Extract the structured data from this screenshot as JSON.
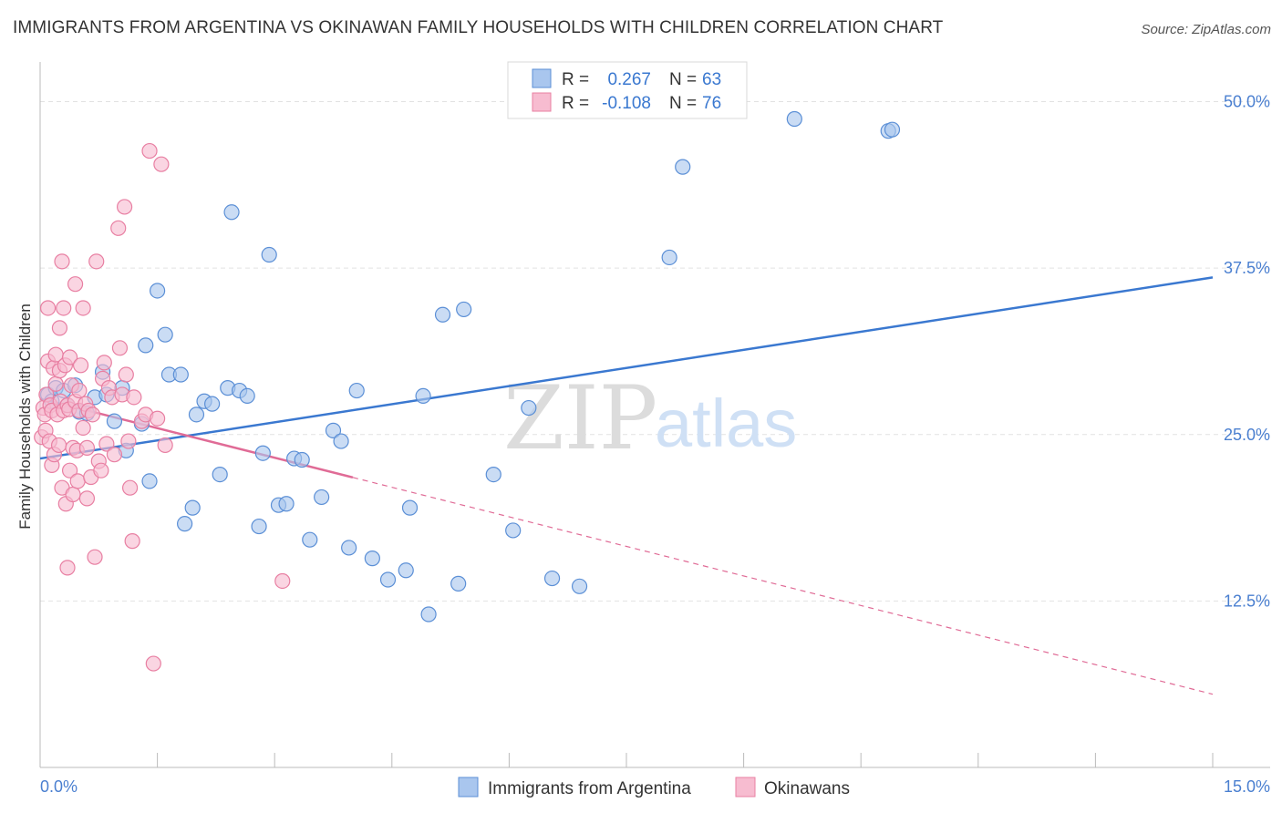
{
  "title": "IMMIGRANTS FROM ARGENTINA VS OKINAWAN FAMILY HOUSEHOLDS WITH CHILDREN CORRELATION CHART",
  "source": "Source: ZipAtlas.com",
  "watermark": {
    "zip": "ZIP",
    "atlas": "atlas"
  },
  "stats": [
    {
      "r_label": "R =",
      "r_value": "0.267",
      "n_label": "N =",
      "n_value": "63"
    },
    {
      "r_label": "R =",
      "r_value": "-0.108",
      "n_label": "N =",
      "n_value": "76"
    }
  ],
  "chart_data": {
    "type": "scatter",
    "title": "IMMIGRANTS FROM ARGENTINA VS OKINAWAN FAMILY HOUSEHOLDS WITH CHILDREN CORRELATION CHART",
    "xlabel": "",
    "ylabel": "Family Households with Children",
    "xlim": [
      0,
      15
    ],
    "ylim": [
      0,
      52.5
    ],
    "x_tick_labels": [
      "0.0%",
      "15.0%"
    ],
    "y_ticks": [
      12.5,
      25.0,
      37.5,
      50.0
    ],
    "y_tick_labels": [
      "12.5%",
      "25.0%",
      "37.5%",
      "50.0%"
    ],
    "grid": true,
    "legend_position": "bottom-center",
    "colors": {
      "blue_fill": "#a9c6ee",
      "blue_stroke": "#5b8fd6",
      "blue_line": "#3a78d0",
      "pink_fill": "#f7bcd0",
      "pink_stroke": "#e87fa2",
      "pink_line": "#e06b96",
      "grid": "#e2e2e2",
      "axis": "#bbbbbb"
    },
    "series": [
      {
        "name": "Immigrants from Argentina",
        "color": "#a9c6ee",
        "trend": {
          "x": [
            0.0,
            15.0
          ],
          "y": [
            23.2,
            36.8
          ]
        },
        "points": [
          {
            "x": 0.1,
            "y": 28.0
          },
          {
            "x": 0.15,
            "y": 27.5
          },
          {
            "x": 0.2,
            "y": 28.5
          },
          {
            "x": 0.3,
            "y": 28.3
          },
          {
            "x": 0.35,
            "y": 27.2
          },
          {
            "x": 0.45,
            "y": 28.7
          },
          {
            "x": 0.5,
            "y": 26.7
          },
          {
            "x": 0.6,
            "y": 26.6
          },
          {
            "x": 0.7,
            "y": 27.8
          },
          {
            "x": 0.8,
            "y": 29.7
          },
          {
            "x": 0.85,
            "y": 28.0
          },
          {
            "x": 0.95,
            "y": 26.0
          },
          {
            "x": 1.05,
            "y": 28.5
          },
          {
            "x": 1.1,
            "y": 23.8
          },
          {
            "x": 1.3,
            "y": 25.8
          },
          {
            "x": 1.35,
            "y": 31.7
          },
          {
            "x": 1.4,
            "y": 21.5
          },
          {
            "x": 1.5,
            "y": 35.8
          },
          {
            "x": 1.6,
            "y": 32.5
          },
          {
            "x": 1.65,
            "y": 29.5
          },
          {
            "x": 1.8,
            "y": 29.5
          },
          {
            "x": 1.85,
            "y": 18.3
          },
          {
            "x": 1.95,
            "y": 19.5
          },
          {
            "x": 2.0,
            "y": 26.5
          },
          {
            "x": 2.1,
            "y": 27.5
          },
          {
            "x": 2.2,
            "y": 27.3
          },
          {
            "x": 2.3,
            "y": 22.0
          },
          {
            "x": 2.4,
            "y": 28.5
          },
          {
            "x": 2.45,
            "y": 41.7
          },
          {
            "x": 2.55,
            "y": 28.3
          },
          {
            "x": 2.65,
            "y": 27.9
          },
          {
            "x": 2.8,
            "y": 18.1
          },
          {
            "x": 2.85,
            "y": 23.6
          },
          {
            "x": 2.93,
            "y": 38.5
          },
          {
            "x": 3.05,
            "y": 19.7
          },
          {
            "x": 3.15,
            "y": 19.8
          },
          {
            "x": 3.25,
            "y": 23.2
          },
          {
            "x": 3.35,
            "y": 23.1
          },
          {
            "x": 3.45,
            "y": 17.1
          },
          {
            "x": 3.6,
            "y": 20.3
          },
          {
            "x": 3.75,
            "y": 25.3
          },
          {
            "x": 3.85,
            "y": 24.5
          },
          {
            "x": 3.95,
            "y": 16.5
          },
          {
            "x": 4.05,
            "y": 28.3
          },
          {
            "x": 4.25,
            "y": 15.7
          },
          {
            "x": 4.45,
            "y": 14.1
          },
          {
            "x": 4.68,
            "y": 14.8
          },
          {
            "x": 4.73,
            "y": 19.5
          },
          {
            "x": 4.9,
            "y": 27.9
          },
          {
            "x": 4.97,
            "y": 11.5
          },
          {
            "x": 5.15,
            "y": 34.0
          },
          {
            "x": 5.35,
            "y": 13.8
          },
          {
            "x": 5.42,
            "y": 34.4
          },
          {
            "x": 5.8,
            "y": 22.0
          },
          {
            "x": 6.05,
            "y": 17.8
          },
          {
            "x": 6.25,
            "y": 27.0
          },
          {
            "x": 6.55,
            "y": 14.2
          },
          {
            "x": 6.9,
            "y": 13.6
          },
          {
            "x": 8.05,
            "y": 38.3
          },
          {
            "x": 8.22,
            "y": 45.1
          },
          {
            "x": 9.65,
            "y": 48.7
          },
          {
            "x": 10.85,
            "y": 47.8
          },
          {
            "x": 10.9,
            "y": 47.9
          }
        ]
      },
      {
        "name": "Okinawans",
        "color": "#f7bcd0",
        "trend": {
          "x": [
            0.0,
            15.0
          ],
          "y": [
            27.7,
            5.5
          ]
        },
        "trend_solid_until_x": 4.0,
        "points": [
          {
            "x": 0.02,
            "y": 24.8
          },
          {
            "x": 0.04,
            "y": 27.0
          },
          {
            "x": 0.06,
            "y": 26.5
          },
          {
            "x": 0.07,
            "y": 25.3
          },
          {
            "x": 0.08,
            "y": 28.0
          },
          {
            "x": 0.1,
            "y": 30.5
          },
          {
            "x": 0.1,
            "y": 34.5
          },
          {
            "x": 0.12,
            "y": 24.5
          },
          {
            "x": 0.13,
            "y": 27.2
          },
          {
            "x": 0.15,
            "y": 22.7
          },
          {
            "x": 0.15,
            "y": 26.8
          },
          {
            "x": 0.17,
            "y": 30.0
          },
          {
            "x": 0.18,
            "y": 23.5
          },
          {
            "x": 0.2,
            "y": 28.8
          },
          {
            "x": 0.2,
            "y": 31.0
          },
          {
            "x": 0.22,
            "y": 26.5
          },
          {
            "x": 0.24,
            "y": 24.2
          },
          {
            "x": 0.25,
            "y": 29.8
          },
          {
            "x": 0.25,
            "y": 33.0
          },
          {
            "x": 0.26,
            "y": 27.5
          },
          {
            "x": 0.28,
            "y": 38.0
          },
          {
            "x": 0.28,
            "y": 21.0
          },
          {
            "x": 0.3,
            "y": 26.8
          },
          {
            "x": 0.3,
            "y": 34.5
          },
          {
            "x": 0.32,
            "y": 30.2
          },
          {
            "x": 0.33,
            "y": 19.8
          },
          {
            "x": 0.35,
            "y": 27.2
          },
          {
            "x": 0.35,
            "y": 15.0
          },
          {
            "x": 0.37,
            "y": 26.9
          },
          {
            "x": 0.38,
            "y": 22.3
          },
          {
            "x": 0.38,
            "y": 30.8
          },
          {
            "x": 0.4,
            "y": 28.7
          },
          {
            "x": 0.42,
            "y": 24.0
          },
          {
            "x": 0.42,
            "y": 20.5
          },
          {
            "x": 0.45,
            "y": 36.3
          },
          {
            "x": 0.45,
            "y": 27.5
          },
          {
            "x": 0.47,
            "y": 23.8
          },
          {
            "x": 0.48,
            "y": 21.5
          },
          {
            "x": 0.5,
            "y": 26.8
          },
          {
            "x": 0.5,
            "y": 28.3
          },
          {
            "x": 0.52,
            "y": 30.2
          },
          {
            "x": 0.55,
            "y": 25.5
          },
          {
            "x": 0.55,
            "y": 34.5
          },
          {
            "x": 0.58,
            "y": 27.3
          },
          {
            "x": 0.6,
            "y": 20.2
          },
          {
            "x": 0.6,
            "y": 24.0
          },
          {
            "x": 0.62,
            "y": 26.8
          },
          {
            "x": 0.65,
            "y": 21.8
          },
          {
            "x": 0.67,
            "y": 26.5
          },
          {
            "x": 0.7,
            "y": 15.8
          },
          {
            "x": 0.72,
            "y": 38.0
          },
          {
            "x": 0.75,
            "y": 23.0
          },
          {
            "x": 0.78,
            "y": 22.3
          },
          {
            "x": 0.8,
            "y": 29.2
          },
          {
            "x": 0.82,
            "y": 30.4
          },
          {
            "x": 0.85,
            "y": 24.3
          },
          {
            "x": 0.88,
            "y": 28.5
          },
          {
            "x": 0.92,
            "y": 27.8
          },
          {
            "x": 0.95,
            "y": 23.5
          },
          {
            "x": 1.0,
            "y": 40.5
          },
          {
            "x": 1.02,
            "y": 31.5
          },
          {
            "x": 1.05,
            "y": 28.0
          },
          {
            "x": 1.08,
            "y": 42.1
          },
          {
            "x": 1.1,
            "y": 29.5
          },
          {
            "x": 1.13,
            "y": 24.5
          },
          {
            "x": 1.15,
            "y": 21.0
          },
          {
            "x": 1.18,
            "y": 17.0
          },
          {
            "x": 1.2,
            "y": 27.8
          },
          {
            "x": 1.3,
            "y": 26.0
          },
          {
            "x": 1.35,
            "y": 26.5
          },
          {
            "x": 1.4,
            "y": 46.3
          },
          {
            "x": 1.45,
            "y": 7.8
          },
          {
            "x": 1.5,
            "y": 26.2
          },
          {
            "x": 1.55,
            "y": 45.3
          },
          {
            "x": 1.6,
            "y": 24.2
          },
          {
            "x": 3.1,
            "y": 14.0
          }
        ]
      }
    ]
  },
  "legend": [
    {
      "label": "Immigrants from Argentina"
    },
    {
      "label": "Okinawans"
    }
  ]
}
